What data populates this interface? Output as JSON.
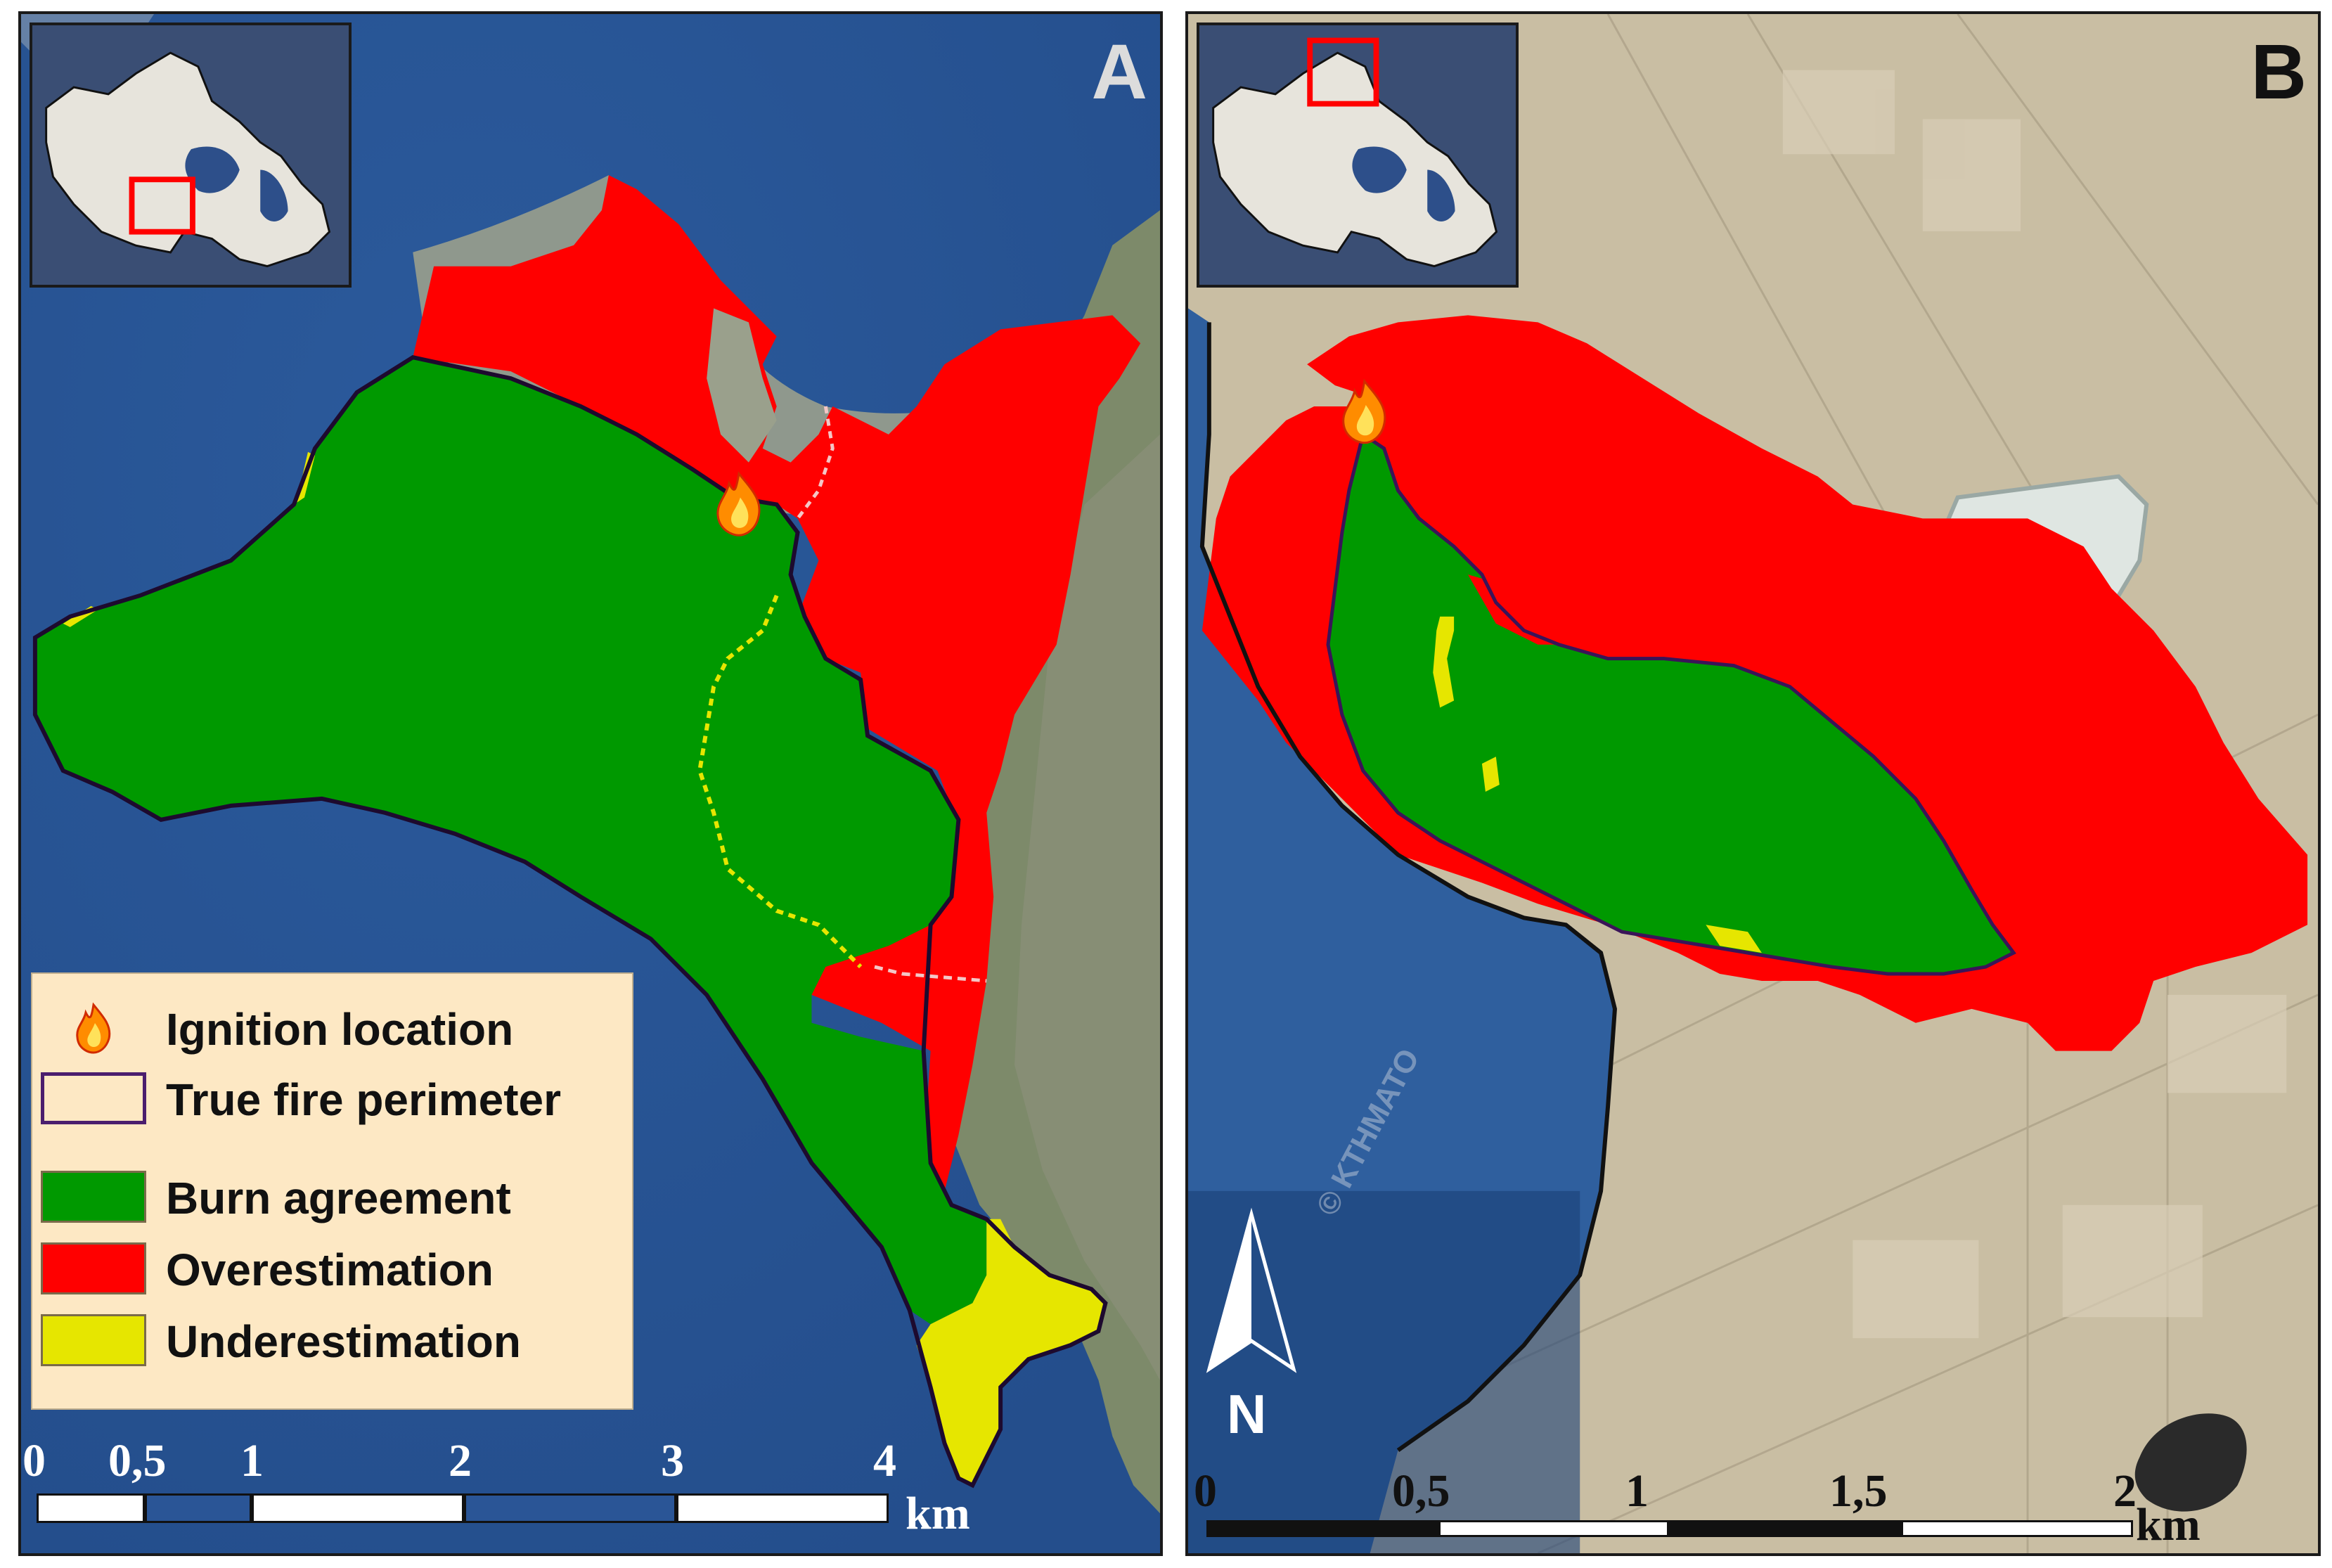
{
  "panels": {
    "a": {
      "label": "A"
    },
    "b": {
      "label": "B"
    }
  },
  "legend": {
    "items": [
      {
        "label": "Ignition location",
        "symbol": "flame-icon"
      },
      {
        "label": "True fire perimeter",
        "symbol": "outline-box",
        "color": "#4b1e6e"
      },
      {
        "label": "Burn agreement",
        "symbol": "fill-box",
        "color": "#009900"
      },
      {
        "label": "Overestimation",
        "symbol": "fill-box",
        "color": "#ff0000"
      },
      {
        "label": "Underestimation",
        "symbol": "fill-box",
        "color": "#e6e600"
      }
    ]
  },
  "scalebar_a": {
    "ticks": [
      "0",
      "0,5",
      "1",
      "2",
      "3",
      "4"
    ],
    "unit": "km"
  },
  "scalebar_b": {
    "ticks": [
      "0",
      "0,5",
      "1",
      "1,5",
      "2"
    ],
    "unit": "km"
  },
  "north_arrow": {
    "label": "N"
  },
  "watermark": "© KTHMATO",
  "colors": {
    "burn_agreement": "#009900",
    "overestimation": "#ff0000",
    "underestimation": "#e6e600",
    "perimeter": "#4b1e6e",
    "sea": "#2f5f9e",
    "land_b": "#c8bba0"
  }
}
